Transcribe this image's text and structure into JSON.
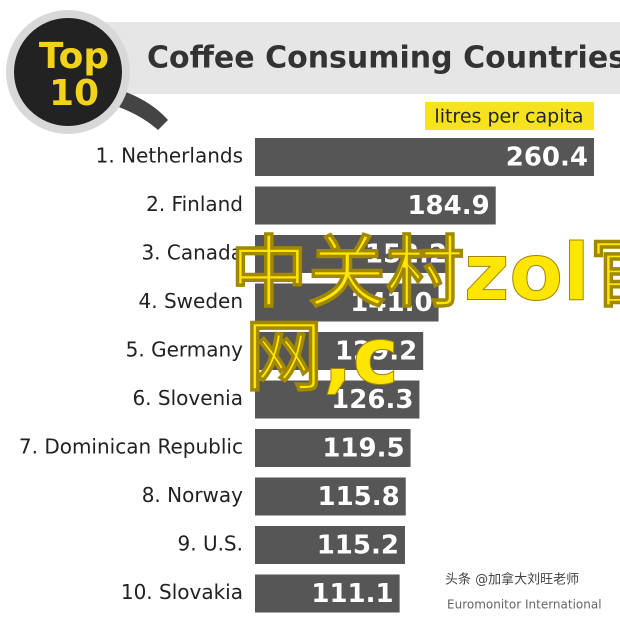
{
  "chart_data": {
    "type": "hbar",
    "badge": {
      "top": "Top",
      "number": "10"
    },
    "title": "Coffee Consuming Countries",
    "unit_label": "litres per capita",
    "categories": [
      "1. Netherlands",
      "2. Finland",
      "3. Canada",
      "4. Sweden",
      "5. Germany",
      "6. Slovenia",
      "7. Dominican Republic",
      "8. Norway",
      "9. U.S.",
      "10. Slovakia"
    ],
    "values": [
      260.4,
      184.9,
      152.2,
      141.0,
      129.2,
      126.3,
      119.5,
      115.8,
      115.2,
      111.1
    ],
    "value_labels": [
      "260.4",
      "184.9",
      "152.2",
      "141.0",
      "129.2",
      "126.3",
      "119.5",
      "115.8",
      "115.2",
      "111.1"
    ],
    "color": "#565656",
    "xlim": [
      0,
      260.4
    ],
    "source": "Euromonitor International",
    "watermarks": [
      "中关村zol官",
      "网,c",
      "头条 @加拿大刘旺老师"
    ]
  }
}
